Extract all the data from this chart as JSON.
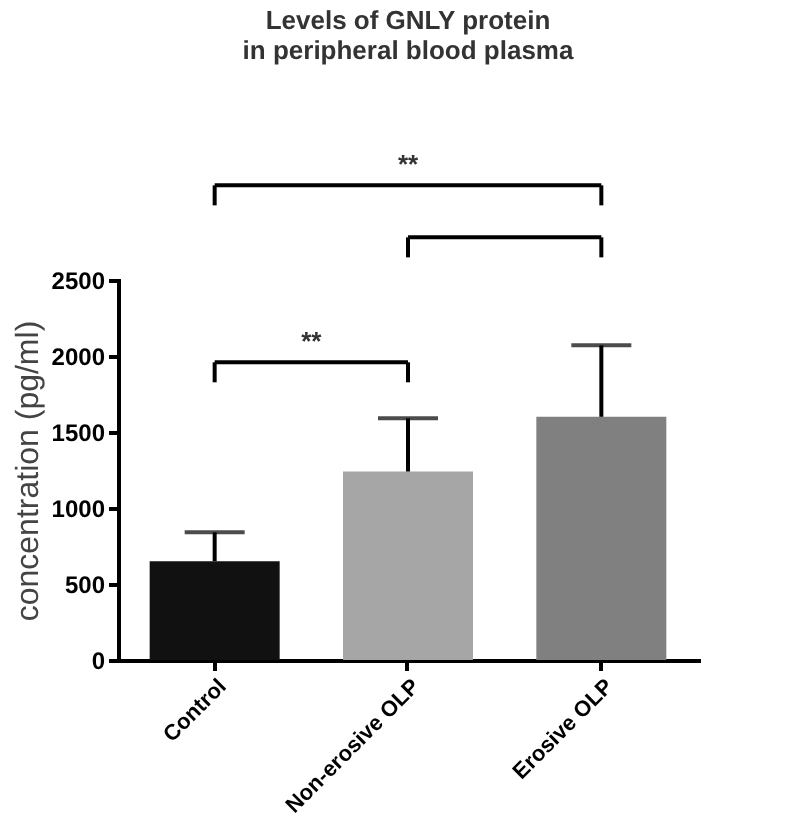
{
  "chart_data": {
    "type": "bar",
    "title": [
      "Levels of GNLY protein",
      "in peripheral blood plasma"
    ],
    "ylabel": "concentration (pg/ml)",
    "categories": [
      "Control",
      "Non-erosive OLP",
      "Erosive OLP"
    ],
    "values": [
      650,
      1240,
      1600
    ],
    "colors": [
      "#111111",
      "#a6a6a6",
      "#808080"
    ],
    "errors": [
      [
        650,
        840
      ],
      [
        1240,
        1590
      ],
      [
        1600,
        2070
      ]
    ],
    "ylim": [
      0,
      2500
    ],
    "yticks": [
      0,
      500,
      1000,
      1500,
      2000,
      2500
    ],
    "grid": false,
    "annotations": [
      "**",
      "**"
    ]
  }
}
